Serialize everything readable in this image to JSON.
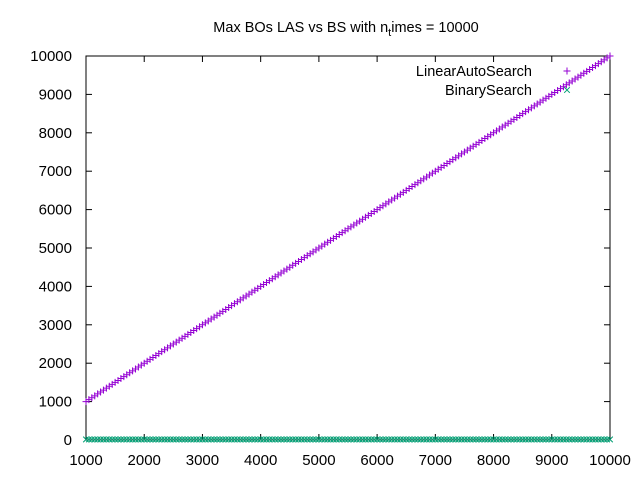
{
  "chart_data": {
    "type": "scatter",
    "title_main": "Max BOs LAS vs BS with n",
    "title_sub": "t",
    "title_rest": "imes = 10000",
    "xlabel": "",
    "ylabel": "",
    "xlim": [
      1000,
      10000
    ],
    "ylim": [
      0,
      10000
    ],
    "xticks": [
      1000,
      2000,
      3000,
      4000,
      5000,
      6000,
      7000,
      8000,
      9000,
      10000
    ],
    "yticks": [
      0,
      1000,
      2000,
      3000,
      4000,
      5000,
      6000,
      7000,
      8000,
      9000,
      10000
    ],
    "grid": false,
    "legend_position": "top-right",
    "series": [
      {
        "name": "LinearAutoSearch",
        "marker": "plus",
        "color": "#9400d3",
        "x_start": 1000,
        "x_end": 10000,
        "x_step": 50,
        "y_start": 1000,
        "y_end": 10000
      },
      {
        "name": "BinarySearch",
        "marker": "cross",
        "color": "#009e73",
        "x_start": 1000,
        "x_end": 10000,
        "x_step": 50,
        "y_approx": 14
      }
    ]
  }
}
